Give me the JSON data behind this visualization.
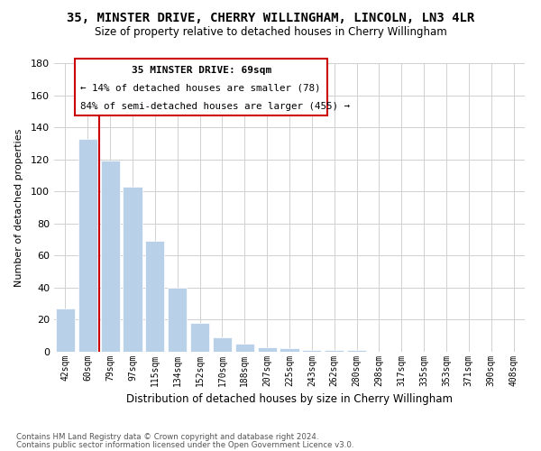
{
  "title": "35, MINSTER DRIVE, CHERRY WILLINGHAM, LINCOLN, LN3 4LR",
  "subtitle": "Size of property relative to detached houses in Cherry Willingham",
  "xlabel": "Distribution of detached houses by size in Cherry Willingham",
  "ylabel": "Number of detached properties",
  "footnote1": "Contains HM Land Registry data © Crown copyright and database right 2024.",
  "footnote2": "Contains public sector information licensed under the Open Government Licence v3.0.",
  "annotation_title": "35 MINSTER DRIVE: 69sqm",
  "annotation_line1": "← 14% of detached houses are smaller (78)",
  "annotation_line2": "84% of semi-detached houses are larger (455) →",
  "bar_categories": [
    "42sqm",
    "60sqm",
    "79sqm",
    "97sqm",
    "115sqm",
    "134sqm",
    "152sqm",
    "170sqm",
    "188sqm",
    "207sqm",
    "225sqm",
    "243sqm",
    "262sqm",
    "280sqm",
    "298sqm",
    "317sqm",
    "335sqm",
    "353sqm",
    "371sqm",
    "390sqm",
    "408sqm"
  ],
  "bar_values": [
    27,
    133,
    119,
    103,
    69,
    40,
    18,
    9,
    5,
    3,
    2,
    1,
    1,
    1,
    0,
    0,
    0,
    0,
    0,
    0,
    0
  ],
  "bar_color": "#b8d0e8",
  "vline_color": "#cc0000",
  "vline_position": 1.5,
  "ylim": [
    0,
    180
  ],
  "yticks": [
    0,
    20,
    40,
    60,
    80,
    100,
    120,
    140,
    160,
    180
  ],
  "annotation_box_color": "#cc0000",
  "background_color": "#ffffff",
  "grid_color": "#d0d0d0"
}
